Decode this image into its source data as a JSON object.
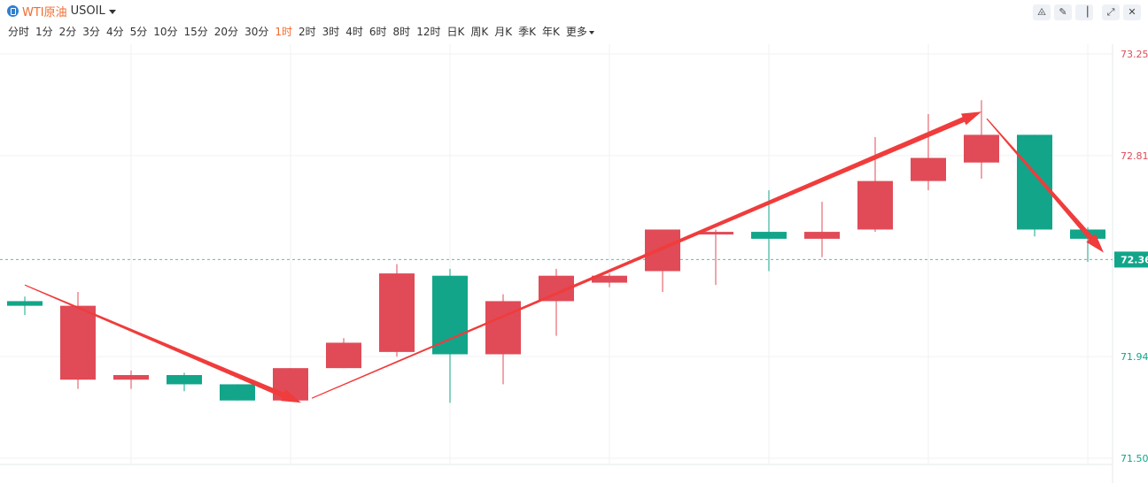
{
  "symbol": {
    "name": "WTI原油",
    "code": "USOIL"
  },
  "periods": [
    "分时",
    "1分",
    "2分",
    "3分",
    "4分",
    "5分",
    "10分",
    "15分",
    "20分",
    "30分",
    "1时",
    "2时",
    "3时",
    "4时",
    "6时",
    "8时",
    "12时",
    "日K",
    "周K",
    "月K",
    "季K",
    "年K"
  ],
  "active_period": "1时",
  "more_label": "更多",
  "colors": {
    "up": "#e04b57",
    "down": "#12a58a",
    "accent": "#f26b2f",
    "arrow": "#f03c3c",
    "grid": "#f0f2f5",
    "current_line": "#12a58a"
  },
  "chart_data": {
    "type": "candlestick",
    "y_axis": {
      "min": 71.5,
      "max": 73.25,
      "ticks": [
        73.25,
        72.81,
        71.94,
        71.5
      ],
      "tick_labels": [
        "73.25",
        "72.81",
        "71.94",
        "71.50"
      ]
    },
    "current_price": 72.36,
    "current_price_label": "72.36",
    "candles": [
      {
        "open": 72.18,
        "high": 72.2,
        "low": 72.12,
        "close": 72.16
      },
      {
        "open": 71.84,
        "high": 72.22,
        "low": 71.8,
        "close": 72.16
      },
      {
        "open": 71.84,
        "high": 71.88,
        "low": 71.8,
        "close": 71.86
      },
      {
        "open": 71.86,
        "high": 71.87,
        "low": 71.79,
        "close": 71.82
      },
      {
        "open": 71.82,
        "high": 71.82,
        "low": 71.75,
        "close": 71.75
      },
      {
        "open": 71.75,
        "high": 71.89,
        "low": 71.75,
        "close": 71.89
      },
      {
        "open": 71.89,
        "high": 72.02,
        "low": 71.89,
        "close": 72.0
      },
      {
        "open": 71.96,
        "high": 72.34,
        "low": 71.94,
        "close": 72.3
      },
      {
        "open": 72.29,
        "high": 72.32,
        "low": 71.74,
        "close": 71.95
      },
      {
        "open": 71.95,
        "high": 72.21,
        "low": 71.82,
        "close": 72.18
      },
      {
        "open": 72.18,
        "high": 72.32,
        "low": 72.03,
        "close": 72.29
      },
      {
        "open": 72.26,
        "high": 72.3,
        "low": 72.24,
        "close": 72.29
      },
      {
        "open": 72.31,
        "high": 72.49,
        "low": 72.22,
        "close": 72.49
      },
      {
        "open": 72.48,
        "high": 72.49,
        "low": 72.25,
        "close": 72.48
      },
      {
        "open": 72.48,
        "high": 72.66,
        "low": 72.31,
        "close": 72.45
      },
      {
        "open": 72.45,
        "high": 72.61,
        "low": 72.37,
        "close": 72.48
      },
      {
        "open": 72.49,
        "high": 72.89,
        "low": 72.48,
        "close": 72.7
      },
      {
        "open": 72.7,
        "high": 72.99,
        "low": 72.66,
        "close": 72.8
      },
      {
        "open": 72.78,
        "high": 73.05,
        "low": 72.71,
        "close": 72.9
      },
      {
        "open": 72.9,
        "high": 72.9,
        "low": 72.46,
        "close": 72.49
      },
      {
        "open": 72.49,
        "high": 72.5,
        "low": 72.35,
        "close": 72.45
      }
    ],
    "arrows": [
      {
        "from": [
          0,
          72.25
        ],
        "to": [
          5.2,
          71.74
        ],
        "style": "thin-to-thick"
      },
      {
        "from": [
          5.4,
          71.76
        ],
        "to": [
          18.0,
          73.0
        ],
        "style": "thin-to-thick"
      },
      {
        "from": [
          18.1,
          72.97
        ],
        "to": [
          20.3,
          72.39
        ],
        "style": "thin-to-thick"
      }
    ]
  }
}
